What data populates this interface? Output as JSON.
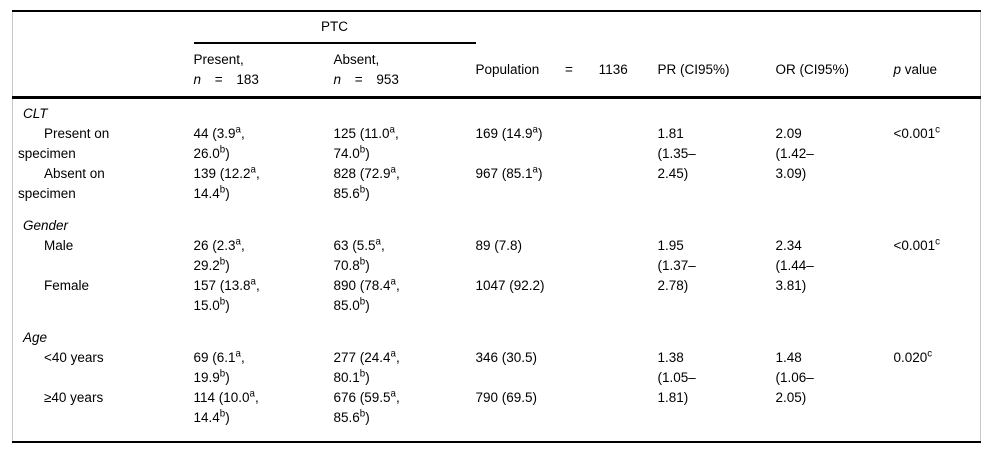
{
  "table": {
    "group": {
      "label": "PTC"
    },
    "header": {
      "present": "Present,\n_n_ = 183",
      "absent": "Absent,\n_n_ = 953",
      "population": "Population = 1136",
      "pr": "PR (CI95%)",
      "or": "OR (CI95%)",
      "p": "_p_ value"
    },
    "sections": [
      {
        "title": "CLT",
        "rows": [
          {
            "label": "Present on\nspecimen",
            "present": "44 (3.9^a,\n26.0^b)",
            "absent": "125 (11.0^a,\n74.0^b)",
            "population": "169 (14.9^a)",
            "pr": "1.81\n(1.35–\n2.45)",
            "or": "2.09\n(1.42–\n3.09)",
            "p": "<0.001^c"
          },
          {
            "label": "Absent on\nspecimen",
            "present": "139 (12.2^a,\n14.4^b)",
            "absent": "828 (72.9^a,\n85.6^b)",
            "population": "967 (85.1^a)"
          }
        ]
      },
      {
        "title": "Gender",
        "rows": [
          {
            "label": "Male",
            "present": "26 (2.3^a,\n29.2^b)",
            "absent": "63 (5.5^a,\n70.8^b)",
            "population": "89 (7.8)",
            "pr": "1.95\n(1.37–\n2.78)",
            "or": "2.34\n(1.44–\n3.81)",
            "p": "<0.001^c"
          },
          {
            "label": "Female",
            "present": "157 (13.8^a,\n15.0^b)",
            "absent": "890 (78.4^a,\n85.0^b)",
            "population": "1047 (92.2)"
          }
        ]
      },
      {
        "title": "Age",
        "rows": [
          {
            "label": "<40 years",
            "present": "69 (6.1^a,\n19.9^b)",
            "absent": "277 (24.4^a,\n80.1^b)",
            "population": "346 (30.5)",
            "pr": "1.38\n(1.05–\n1.81)",
            "or": "1.48\n(1.06–\n2.05)",
            "p": "0.020^c"
          },
          {
            "label": "≥40 years",
            "present": "114 (10.0^a,\n14.4^b)",
            "absent": "676 (59.5^a,\n85.6^b)",
            "population": "790 (69.5)"
          }
        ]
      }
    ],
    "colors": {
      "rule": "#000000",
      "side_border": "#c9c9c9",
      "text": "#000000",
      "background": "#ffffff"
    }
  }
}
